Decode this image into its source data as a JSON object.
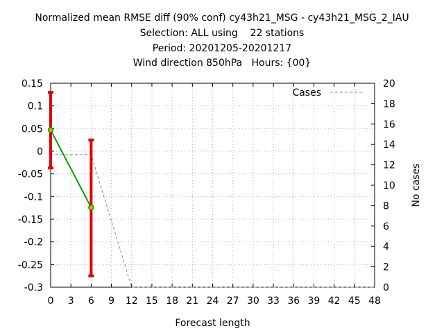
{
  "chart_data": {
    "type": "line",
    "title_lines": [
      "Normalized mean RMSE diff (90% conf) cy43h21_MSG - cy43h21_MSG_2_IAU",
      "Selection: ALL using    22 stations",
      "Period: 20201205-20201217",
      "Wind direction 850hPa   Hours: {00}"
    ],
    "xlabel": "Forecast length",
    "ylabel": "",
    "y2label": "No cases",
    "xlim": [
      0,
      48
    ],
    "ylim": [
      -0.3,
      0.15
    ],
    "y2lim": [
      0,
      20
    ],
    "xticks": [
      0,
      3,
      6,
      9,
      12,
      15,
      18,
      21,
      24,
      27,
      30,
      33,
      36,
      39,
      42,
      45,
      48
    ],
    "yticks": [
      "0.15",
      "0.1",
      "0.05",
      "0",
      "-0.05",
      "-0.1",
      "-0.15",
      "-0.2",
      "-0.25",
      "-0.3"
    ],
    "y2ticks": [
      20,
      18,
      16,
      14,
      12,
      10,
      8,
      6,
      4,
      2,
      0
    ],
    "grid": true,
    "legend_position": "top-right",
    "series": [
      {
        "x": [
          0,
          6
        ],
        "y": [
          0.047,
          -0.124
        ],
        "error_low": [
          -0.037,
          -0.275
        ],
        "error_high": [
          0.13,
          0.025
        ],
        "line_color": "#00a000",
        "error_color": "#e00000",
        "marker_color": "#e8a000"
      },
      {
        "name": "Cases",
        "axis": "y2",
        "x": [
          0,
          3,
          6,
          12,
          48
        ],
        "y": [
          13,
          13,
          13,
          0,
          0
        ],
        "line_color": "#888888",
        "dashed": true
      }
    ]
  }
}
